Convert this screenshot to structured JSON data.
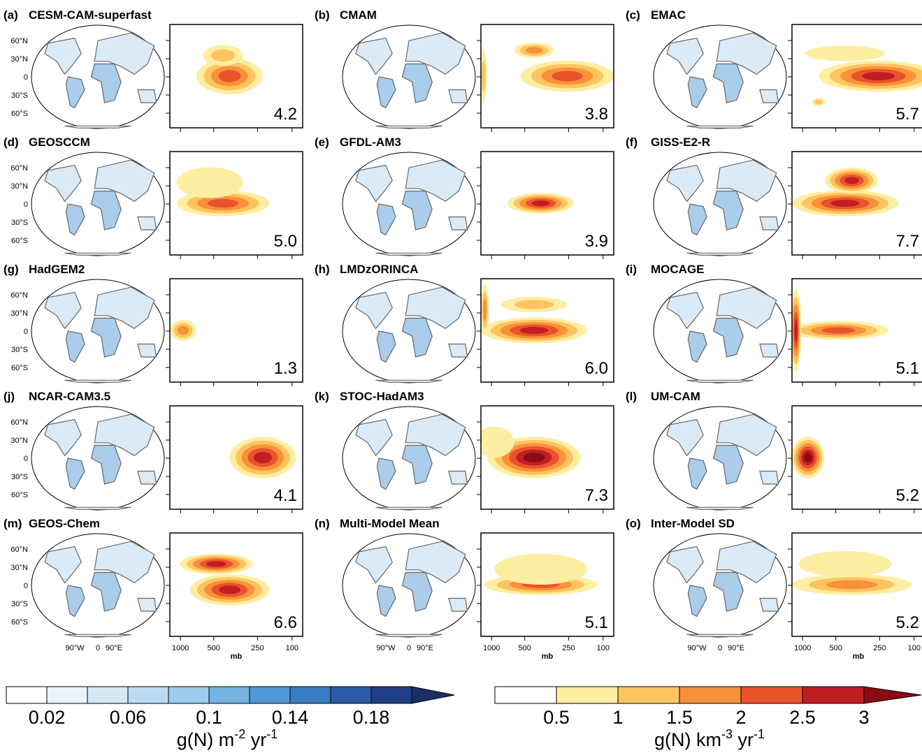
{
  "panels": [
    {
      "label": "(a)",
      "name": "CESM-CAM-superfast",
      "total": "4.2"
    },
    {
      "label": "(b)",
      "name": "CMAM",
      "total": "3.8"
    },
    {
      "label": "(c)",
      "name": "EMAC",
      "total": "5.7"
    },
    {
      "label": "(d)",
      "name": "GEOSCCM",
      "total": "5.0"
    },
    {
      "label": "(e)",
      "name": "GFDL-AM3",
      "total": "3.9"
    },
    {
      "label": "(f)",
      "name": "GISS-E2-R",
      "total": "7.7"
    },
    {
      "label": "(g)",
      "name": "HadGEM2",
      "total": "1.3"
    },
    {
      "label": "(h)",
      "name": "LMDzORINCA",
      "total": "6.0"
    },
    {
      "label": "(i)",
      "name": "MOCAGE",
      "total": "5.1"
    },
    {
      "label": "(j)",
      "name": "NCAR-CAM3.5",
      "total": "4.1"
    },
    {
      "label": "(k)",
      "name": "STOC-HadAM3",
      "total": "7.3"
    },
    {
      "label": "(l)",
      "name": "UM-CAM",
      "total": "5.2"
    },
    {
      "label": "(m)",
      "name": "GEOS-Chem",
      "total": "6.6"
    },
    {
      "label": "(n)",
      "name": "Multi-Model Mean",
      "total": "5.1"
    },
    {
      "label": "(o)",
      "name": "Inter-Model SD",
      "total": "5.2"
    }
  ],
  "lat_labels": [
    "60°N",
    "30°N",
    "0",
    "30°S",
    "60°S"
  ],
  "lon_labels": [
    "90°W",
    "0",
    "90°E"
  ],
  "pressure_labels": [
    "1000",
    "500",
    "250",
    "100"
  ],
  "pressure_unit": "mb",
  "colorbar_left": {
    "ticks": [
      0.02,
      0.06,
      0.1,
      0.14,
      0.18
    ],
    "unit": {
      "base": "g(N) m",
      "exp1": "-2",
      "mid": " yr",
      "exp2": "-1"
    }
  },
  "colorbar_right": {
    "ticks": [
      0.5,
      1,
      1.5,
      2,
      2.5,
      3
    ],
    "unit": {
      "base": "g(N) km",
      "exp1": "-3",
      "mid": " yr",
      "exp2": "-1"
    }
  }
}
